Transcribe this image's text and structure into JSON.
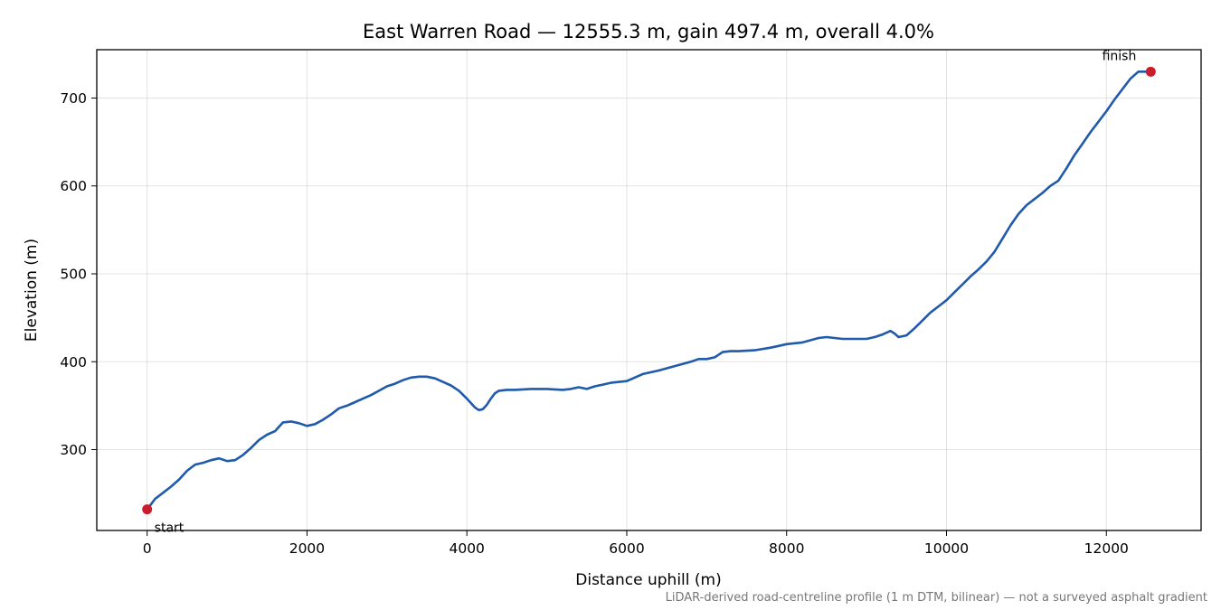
{
  "chart_data": {
    "type": "line",
    "title": "East Warren Road — 12555.3 m, gain 497.4 m, overall 4.0%",
    "xlabel": "Distance uphill (m)",
    "ylabel": "Elevation (m)",
    "xlim": [
      -630,
      13185
    ],
    "ylim": [
      208,
      755
    ],
    "xticks": [
      0,
      2000,
      4000,
      6000,
      8000,
      10000,
      12000
    ],
    "yticks": [
      300,
      400,
      500,
      600,
      700
    ],
    "grid": true,
    "line_color": "#1f5aab",
    "marker_color": "#c81e2d",
    "footnote": "LiDAR-derived road-centreline profile (1 m DTM, bilinear) — not a surveyed asphalt gradient",
    "annotations": [
      {
        "text": "start",
        "x": 0,
        "y": 232
      },
      {
        "text": "finish",
        "x": 12555,
        "y": 730
      }
    ],
    "series": [
      {
        "x": [
          0,
          100,
          200,
          300,
          400,
          500,
          600,
          700,
          800,
          900,
          1000,
          1100,
          1200,
          1300,
          1400,
          1500,
          1600,
          1700,
          1800,
          1900,
          2000,
          2100,
          2200,
          2300,
          2400,
          2500,
          2600,
          2700,
          2800,
          2900,
          3000,
          3100,
          3200,
          3300,
          3400,
          3500,
          3600,
          3700,
          3800,
          3900,
          4000,
          4100,
          4150,
          4200,
          4250,
          4300,
          4350,
          4400,
          4500,
          4600,
          4800,
          5000,
          5200,
          5300,
          5400,
          5500,
          5600,
          5700,
          5800,
          6000,
          6100,
          6200,
          6400,
          6600,
          6800,
          6900,
          7000,
          7100,
          7200,
          7300,
          7400,
          7600,
          7800,
          7900,
          8000,
          8200,
          8400,
          8500,
          8700,
          8900,
          9000,
          9100,
          9200,
          9300,
          9350,
          9400,
          9500,
          9600,
          9700,
          9800,
          9900,
          10000,
          10100,
          10200,
          10300,
          10400,
          10500,
          10600,
          10700,
          10800,
          10900,
          11000,
          11100,
          11200,
          11300,
          11400,
          11500,
          11600,
          11700,
          11800,
          11900,
          12000,
          12100,
          12200,
          12300,
          12400,
          12555
        ],
        "y": [
          232,
          244,
          251,
          258,
          266,
          276,
          283,
          285,
          288,
          290,
          287,
          288,
          294,
          302,
          311,
          317,
          321,
          331,
          332,
          330,
          327,
          329,
          334,
          340,
          347,
          350,
          354,
          358,
          362,
          367,
          372,
          375,
          379,
          382,
          383,
          383,
          381,
          377,
          373,
          367,
          358,
          348,
          345,
          346,
          351,
          358,
          364,
          367,
          368,
          368,
          369,
          369,
          368,
          369,
          371,
          369,
          372,
          374,
          376,
          378,
          382,
          386,
          390,
          395,
          400,
          403,
          403,
          405,
          411,
          412,
          412,
          413,
          416,
          418,
          420,
          422,
          427,
          428,
          426,
          426,
          426,
          428,
          431,
          435,
          432,
          428,
          430,
          438,
          447,
          456,
          463,
          470,
          479,
          488,
          497,
          505,
          514,
          525,
          540,
          555,
          568,
          578,
          585,
          592,
          600,
          606,
          620,
          635,
          648,
          661,
          673,
          685,
          698,
          710,
          722,
          730,
          730
        ]
      }
    ]
  }
}
